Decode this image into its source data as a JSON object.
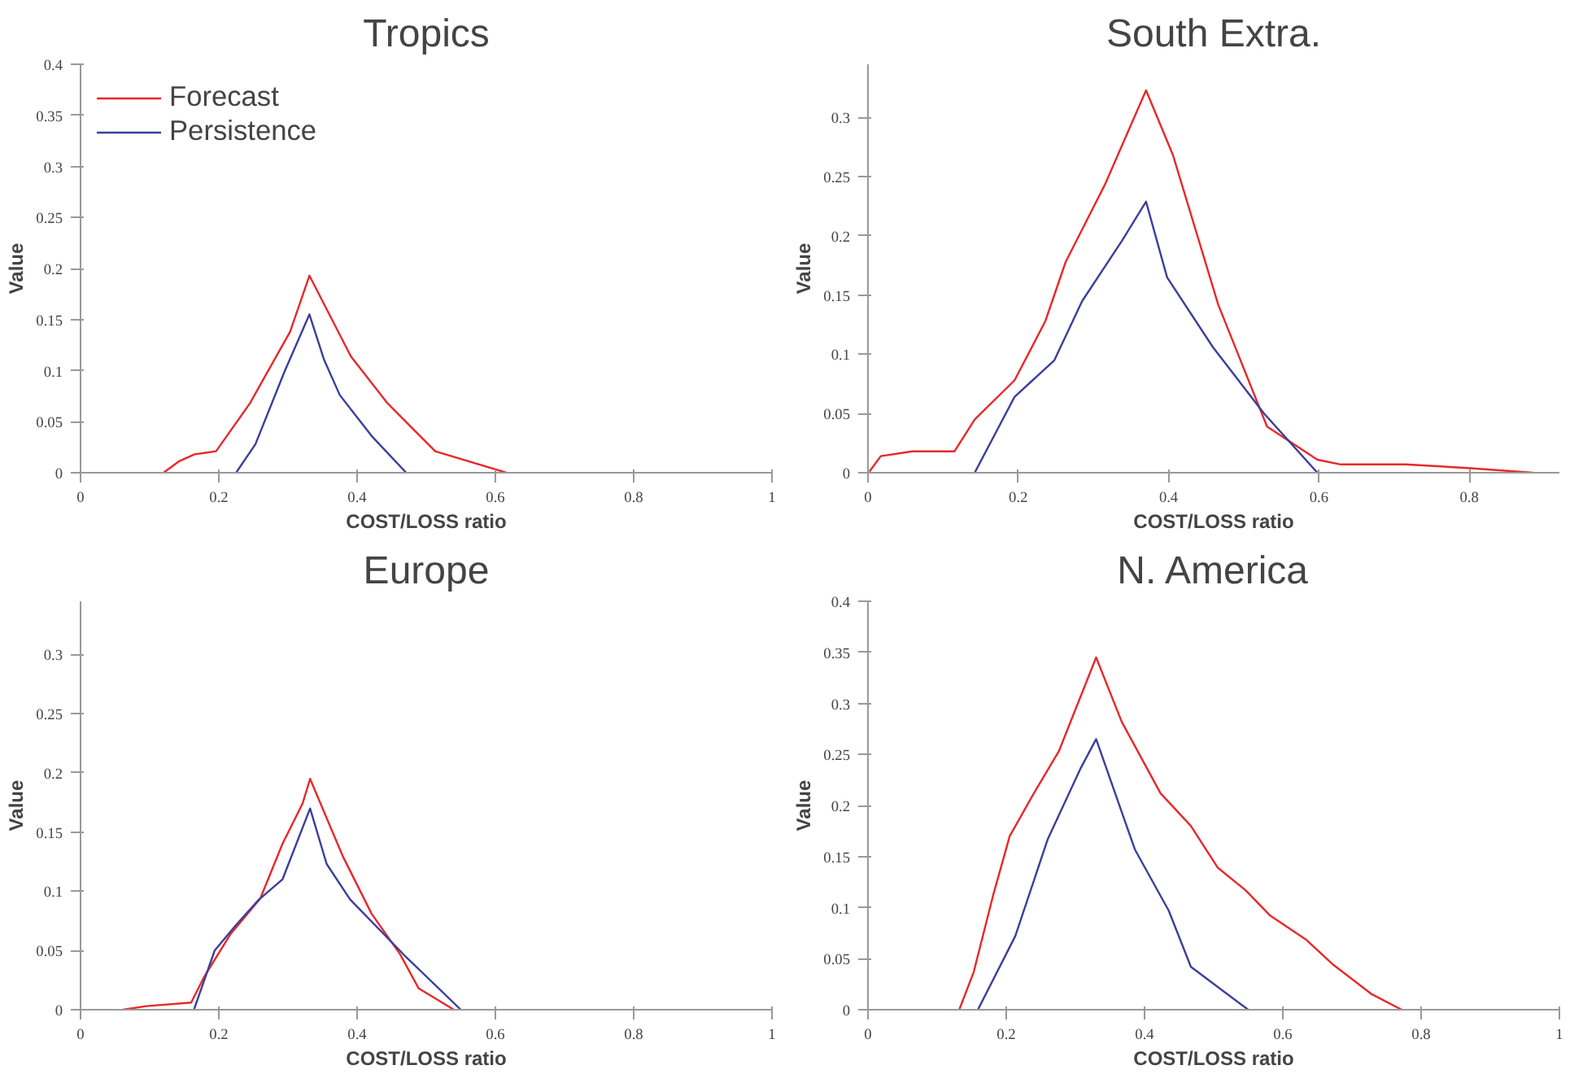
{
  "chart_data": [
    {
      "type": "line",
      "title": "Tropics",
      "xlabel": "COST/LOSS ratio",
      "ylabel": "Value",
      "xlim": [
        0,
        1
      ],
      "ylim": [
        0,
        0.4
      ],
      "xticks": [
        0,
        0.2,
        0.4,
        0.6,
        0.8,
        1
      ],
      "yticks": [
        0,
        0.05,
        0.1,
        0.15,
        0.2,
        0.25,
        0.3,
        0.35,
        0.4
      ],
      "grid": false,
      "legend": "top left",
      "series": [
        {
          "name": "Forecast",
          "color": "#e8282a",
          "x": [
            0.12,
            0.142,
            0.165,
            0.196,
            0.245,
            0.303,
            0.331,
            0.391,
            0.444,
            0.513,
            0.616
          ],
          "values": [
            0,
            0.011,
            0.018,
            0.021,
            0.068,
            0.138,
            0.193,
            0.114,
            0.068,
            0.021,
            0
          ]
        },
        {
          "name": "Persistence",
          "color": "#3a3f9a",
          "x": [
            0.225,
            0.253,
            0.295,
            0.331,
            0.352,
            0.375,
            0.421,
            0.471
          ],
          "values": [
            0,
            0.028,
            0.099,
            0.155,
            0.111,
            0.076,
            0.036,
            0
          ]
        }
      ]
    },
    {
      "type": "line",
      "title": "South Extra.",
      "xlabel": "COST/LOSS ratio",
      "ylabel": "Value",
      "xlim": [
        0,
        0.92
      ],
      "ylim": [
        0,
        0.345
      ],
      "xticks": [
        0,
        0.2,
        0.4,
        0.6,
        0.8
      ],
      "yticks": [
        0,
        0.05,
        0.1,
        0.15,
        0.2,
        0.25,
        0.3
      ],
      "grid": false,
      "series": [
        {
          "color": "#e8282a",
          "x": [
            0.002,
            0.017,
            0.059,
            0.115,
            0.142,
            0.195,
            0.236,
            0.263,
            0.315,
            0.37,
            0.406,
            0.466,
            0.531,
            0.598,
            0.629,
            0.715,
            0.798,
            0.885
          ],
          "values": [
            0.001,
            0.014,
            0.018,
            0.018,
            0.045,
            0.078,
            0.128,
            0.178,
            0.243,
            0.323,
            0.268,
            0.142,
            0.039,
            0.011,
            0.007,
            0.007,
            0.004,
            0
          ]
        },
        {
          "color": "#3a3f9a",
          "x": [
            0.142,
            0.195,
            0.248,
            0.285,
            0.338,
            0.37,
            0.398,
            0.459,
            0.527,
            0.598
          ],
          "values": [
            0,
            0.064,
            0.095,
            0.145,
            0.196,
            0.229,
            0.165,
            0.106,
            0.05,
            0
          ]
        }
      ]
    },
    {
      "type": "line",
      "title": "Europe",
      "xlabel": "COST/LOSS ratio",
      "ylabel": "Value",
      "xlim": [
        0,
        1
      ],
      "ylim": [
        0,
        0.345
      ],
      "xticks": [
        0,
        0.2,
        0.4,
        0.6,
        0.8,
        1
      ],
      "yticks": [
        0,
        0.05,
        0.1,
        0.15,
        0.2,
        0.25,
        0.3
      ],
      "grid": false,
      "series": [
        {
          "color": "#e8282a",
          "x": [
            0.061,
            0.095,
            0.16,
            0.179,
            0.217,
            0.26,
            0.292,
            0.321,
            0.332,
            0.379,
            0.421,
            0.462,
            0.489,
            0.54
          ],
          "values": [
            0,
            0.003,
            0.006,
            0.028,
            0.064,
            0.094,
            0.14,
            0.174,
            0.195,
            0.13,
            0.081,
            0.047,
            0.018,
            0
          ]
        },
        {
          "color": "#3a3f9a",
          "x": [
            0.164,
            0.194,
            0.224,
            0.258,
            0.292,
            0.332,
            0.356,
            0.39,
            0.47,
            0.55
          ],
          "values": [
            0,
            0.05,
            0.071,
            0.093,
            0.11,
            0.17,
            0.123,
            0.093,
            0.045,
            0
          ]
        }
      ]
    },
    {
      "type": "line",
      "title": "N. America",
      "xlabel": "COST/LOSS ratio",
      "ylabel": "Value",
      "xlim": [
        0,
        1
      ],
      "ylim": [
        0,
        0.4
      ],
      "xticks": [
        0,
        0.2,
        0.4,
        0.6,
        0.8,
        1
      ],
      "yticks": [
        0,
        0.05,
        0.1,
        0.15,
        0.2,
        0.25,
        0.3,
        0.35,
        0.4
      ],
      "grid": false,
      "series": [
        {
          "color": "#e8282a",
          "x": [
            0.132,
            0.153,
            0.181,
            0.205,
            0.24,
            0.276,
            0.33,
            0.367,
            0.423,
            0.467,
            0.506,
            0.546,
            0.582,
            0.633,
            0.673,
            0.729,
            0.772
          ],
          "values": [
            0,
            0.037,
            0.112,
            0.17,
            0.212,
            0.253,
            0.345,
            0.282,
            0.212,
            0.18,
            0.139,
            0.117,
            0.092,
            0.069,
            0.044,
            0.015,
            0
          ]
        },
        {
          "color": "#3a3f9a",
          "x": [
            0.159,
            0.213,
            0.26,
            0.308,
            0.33,
            0.386,
            0.435,
            0.467,
            0.55
          ],
          "values": [
            0,
            0.072,
            0.167,
            0.237,
            0.265,
            0.157,
            0.097,
            0.042,
            0
          ]
        }
      ]
    }
  ]
}
